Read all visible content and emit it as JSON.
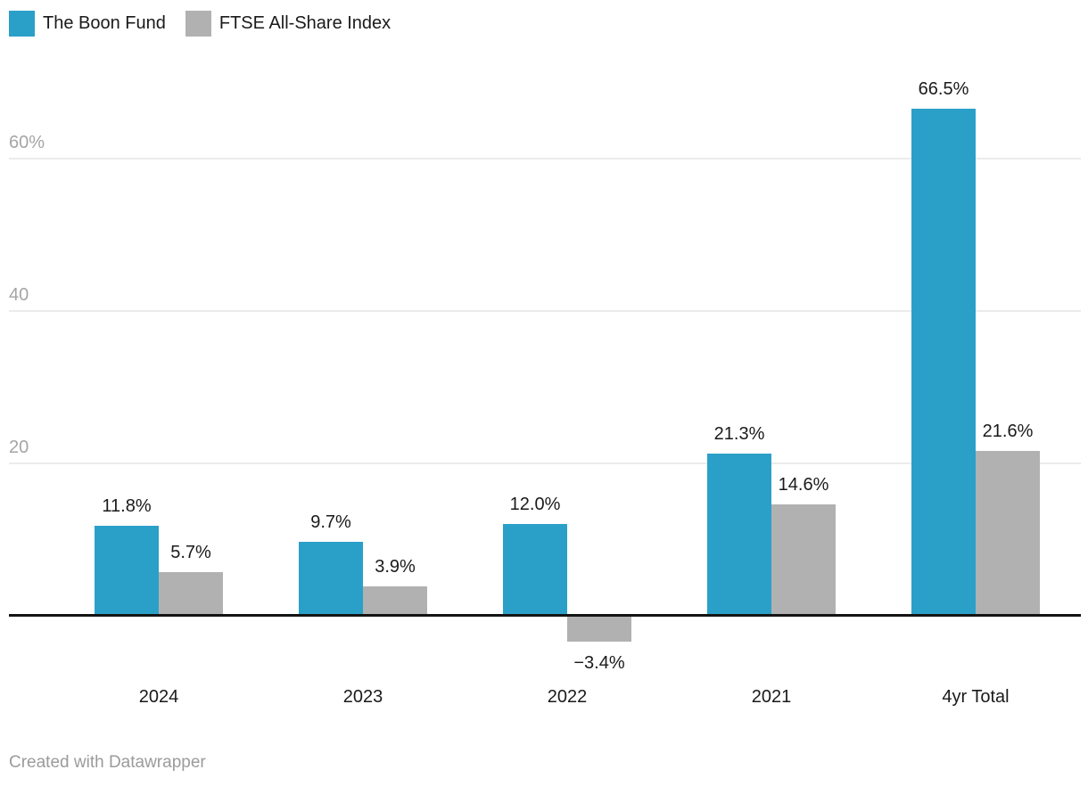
{
  "legend": {
    "items": [
      {
        "label": "The Boon Fund",
        "color": "#2aa0c8"
      },
      {
        "label": "FTSE All-Share Index",
        "color": "#b1b1b1"
      }
    ]
  },
  "chart_data": {
    "type": "bar",
    "title": "",
    "categories": [
      "2024",
      "2023",
      "2022",
      "2021",
      "4yr Total"
    ],
    "series": [
      {
        "name": "The Boon Fund",
        "color": "#2aa0c8",
        "values": [
          11.8,
          9.7,
          12.0,
          21.3,
          66.5
        ],
        "labels": [
          "11.8%",
          "9.7%",
          "12.0%",
          "21.3%",
          "66.5%"
        ]
      },
      {
        "name": "FTSE All-Share Index",
        "color": "#b1b1b1",
        "values": [
          5.7,
          3.9,
          -3.4,
          14.6,
          21.6
        ],
        "labels": [
          "5.7%",
          "3.9%",
          "−3.4%",
          "14.6%",
          "21.6%"
        ]
      }
    ],
    "yticks": [
      {
        "value": 20,
        "label": "20"
      },
      {
        "value": 40,
        "label": "40"
      },
      {
        "value": 60,
        "label": "60%"
      }
    ],
    "ylim": [
      -8,
      70
    ],
    "xlabel": "",
    "ylabel": "",
    "grid": "horizontal",
    "legend_position": "top-left",
    "baseline_value": 0
  },
  "colors": {
    "grid": "#ebebeb",
    "baseline": "#141414",
    "tick_label": "#a5a5a5",
    "value_label": "#1a1a1a",
    "footer": "#9b9b9b",
    "background": "#ffffff"
  },
  "footer": {
    "credit": "Created with Datawrapper"
  }
}
